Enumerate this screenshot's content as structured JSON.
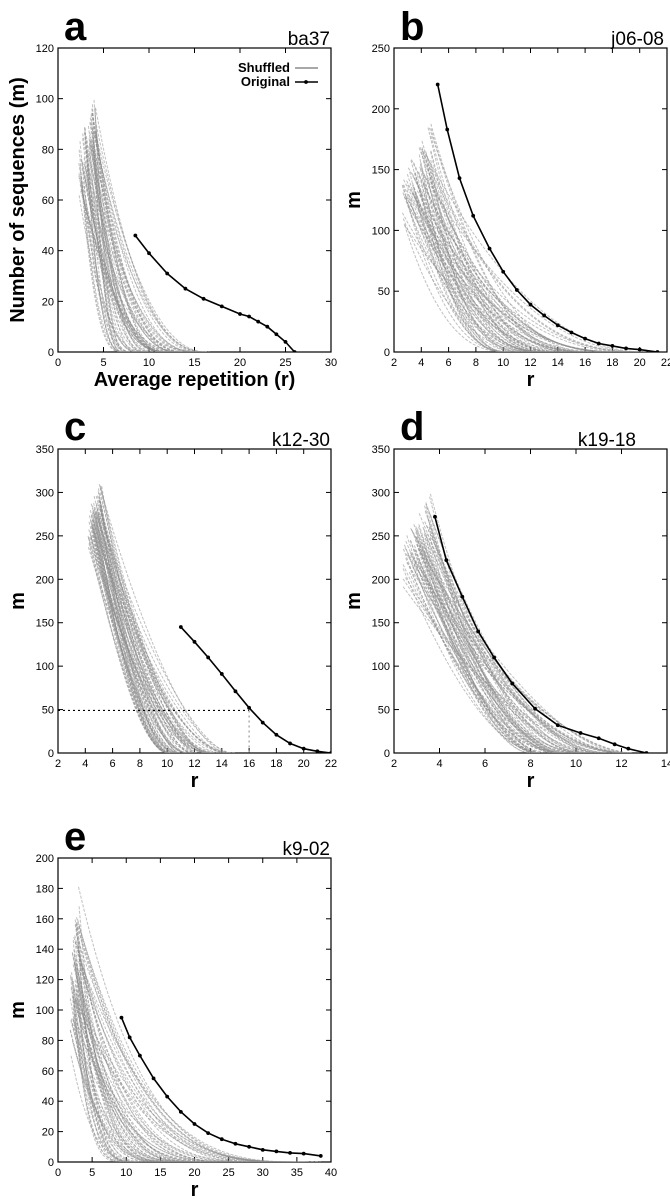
{
  "figure": {
    "panels": [
      {
        "id": "a",
        "label": "a",
        "dataset": "ba37",
        "xlabel": "Average repetition (r)",
        "ylabel": "Number of sequences (m)"
      },
      {
        "id": "b",
        "label": "b",
        "dataset": "j06-08",
        "xlabel": "r",
        "ylabel": "m"
      },
      {
        "id": "c",
        "label": "c",
        "dataset": "k12-30",
        "xlabel": "r",
        "ylabel": "m"
      },
      {
        "id": "d",
        "label": "d",
        "dataset": "k19-18",
        "xlabel": "r",
        "ylabel": "m"
      },
      {
        "id": "e",
        "label": "e",
        "dataset": "k9-02",
        "xlabel": "r",
        "ylabel": "m"
      }
    ],
    "legend": {
      "shuffled": "Shuffled",
      "original": "Original"
    }
  },
  "colors": {
    "shuffled": "#8c8c8c",
    "original": "#000000"
  },
  "chart_data": [
    {
      "panel": "a",
      "type": "line",
      "title": "ba37",
      "xlabel": "Average repetition (r)",
      "ylabel": "Number of sequences (m)",
      "xlim": [
        0,
        30
      ],
      "ylim": [
        0,
        120
      ],
      "xticks": [
        0,
        5,
        10,
        15,
        20,
        25,
        30
      ],
      "yticks": [
        0,
        20,
        40,
        60,
        80,
        100,
        120
      ],
      "legend_position": "top-right",
      "series": [
        {
          "name": "Original",
          "x": [
            8.5,
            10,
            12,
            14,
            16,
            18,
            20,
            21,
            22,
            23,
            24,
            25,
            26
          ],
          "y": [
            46,
            39,
            31,
            25,
            21,
            18,
            15,
            14,
            12,
            10,
            7,
            4,
            0
          ]
        },
        {
          "name": "Shuffled",
          "band": true,
          "start_x": [
            2.3,
            4.2
          ],
          "start_y": [
            60,
            104
          ],
          "end_x": [
            7,
            17
          ],
          "decay": 2.6
        }
      ]
    },
    {
      "panel": "b",
      "type": "line",
      "title": "j06-08",
      "xlabel": "r",
      "ylabel": "m",
      "xlim": [
        2,
        22
      ],
      "ylim": [
        0,
        250
      ],
      "xticks": [
        2,
        4,
        6,
        8,
        10,
        12,
        14,
        16,
        18,
        20,
        22
      ],
      "yticks": [
        0,
        50,
        100,
        150,
        200,
        250
      ],
      "series": [
        {
          "name": "Original",
          "x": [
            5.2,
            5.9,
            6.8,
            7.8,
            9,
            10,
            11,
            12,
            13,
            14,
            15,
            16,
            17,
            18,
            19,
            20,
            21.3
          ],
          "y": [
            220,
            183,
            143,
            112,
            85,
            66,
            51,
            39,
            30,
            22,
            16,
            11,
            7,
            5,
            3,
            2,
            0
          ]
        },
        {
          "name": "Shuffled",
          "band": true,
          "start_x": [
            2.6,
            4.7
          ],
          "start_y": [
            100,
            190
          ],
          "end_x": [
            10,
            21
          ],
          "decay": 2.4
        }
      ]
    },
    {
      "panel": "c",
      "type": "line",
      "title": "k12-30",
      "xlabel": "r",
      "ylabel": "m",
      "xlim": [
        2,
        22
      ],
      "ylim": [
        0,
        350
      ],
      "xticks": [
        2,
        4,
        6,
        8,
        10,
        12,
        14,
        16,
        18,
        20,
        22
      ],
      "yticks": [
        0,
        50,
        100,
        150,
        200,
        250,
        300,
        350
      ],
      "reference_point": {
        "x": 16,
        "y": 49
      },
      "series": [
        {
          "name": "Original",
          "x": [
            11,
            12,
            13,
            14,
            15,
            16,
            17,
            18,
            19,
            20,
            21,
            22
          ],
          "y": [
            145,
            128,
            110,
            91,
            71,
            52,
            35,
            21,
            11,
            5,
            2,
            0
          ]
        },
        {
          "name": "Shuffled",
          "band": true,
          "start_x": [
            4.2,
            5.2
          ],
          "start_y": [
            235,
            320
          ],
          "end_x": [
            10,
            15
          ],
          "decay": 1.8
        }
      ]
    },
    {
      "panel": "d",
      "type": "line",
      "title": "k19-18",
      "xlabel": "r",
      "ylabel": "m",
      "xlim": [
        2,
        14
      ],
      "ylim": [
        0,
        350
      ],
      "xticks": [
        2,
        4,
        6,
        8,
        10,
        12,
        14
      ],
      "yticks": [
        0,
        50,
        100,
        150,
        200,
        250,
        300,
        350
      ],
      "series": [
        {
          "name": "Original",
          "x": [
            3.8,
            4.3,
            5,
            5.7,
            6.4,
            7.2,
            8.2,
            9.2,
            10.2,
            11,
            11.7,
            12.3,
            13.1
          ],
          "y": [
            272,
            222,
            180,
            140,
            110,
            80,
            51,
            32,
            23,
            17,
            10,
            5,
            0
          ]
        },
        {
          "name": "Shuffled",
          "band": true,
          "start_x": [
            2.4,
            3.6
          ],
          "start_y": [
            190,
            300
          ],
          "end_x": [
            8,
            12.5
          ],
          "decay": 1.9
        }
      ]
    },
    {
      "panel": "e",
      "type": "line",
      "title": "k9-02",
      "xlabel": "r",
      "ylabel": "m",
      "xlim": [
        0,
        40
      ],
      "ylim": [
        0,
        200
      ],
      "xticks": [
        0,
        5,
        10,
        15,
        20,
        25,
        30,
        35,
        40
      ],
      "yticks": [
        0,
        20,
        40,
        60,
        80,
        100,
        120,
        140,
        160,
        180,
        200
      ],
      "series": [
        {
          "name": "Original",
          "x": [
            9.3,
            10.5,
            12,
            14,
            16,
            18,
            20,
            22,
            24,
            26,
            28,
            30,
            32,
            34,
            36,
            38.5
          ],
          "y": [
            95,
            82,
            70,
            55,
            43,
            33,
            25,
            19,
            15,
            12,
            10,
            8,
            7,
            6,
            5.5,
            4
          ]
        },
        {
          "name": "Shuffled",
          "band": true,
          "start_x": [
            1.8,
            3.1
          ],
          "start_y": [
            60,
            190
          ],
          "end_x": [
            10,
            39
          ],
          "decay": 3.5
        }
      ]
    }
  ]
}
